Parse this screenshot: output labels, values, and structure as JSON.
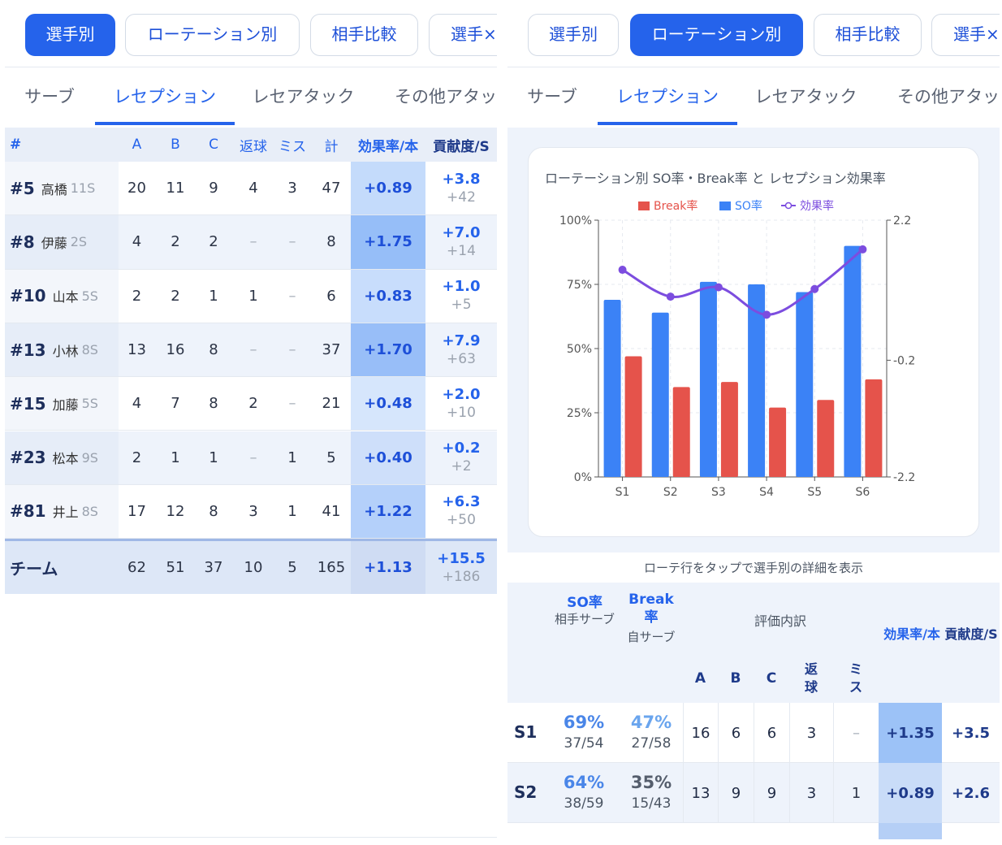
{
  "left": {
    "pills": [
      "選手別",
      "ローテーション別",
      "相手比較",
      "選手×"
    ],
    "active_pill": 0,
    "subtabs": [
      "サーブ",
      "レセプション",
      "レセアタック",
      "その他アタッ・"
    ],
    "active_subtab": 1,
    "table": {
      "headers": [
        "#",
        "A",
        "B",
        "C",
        "返球",
        "ミス",
        "計",
        "効果率/本",
        "貢献度/S"
      ],
      "rows": [
        {
          "num": "#5",
          "name": "高橋",
          "sets": "11S",
          "a": "20",
          "b": "11",
          "c": "9",
          "ret": "4",
          "miss": "3",
          "total": "47",
          "eff": "+0.89",
          "contrib": "+3.8",
          "contrib_total": "+42",
          "eff_level": 0.5
        },
        {
          "num": "#8",
          "name": "伊藤",
          "sets": "2S",
          "a": "4",
          "b": "2",
          "c": "2",
          "ret": "–",
          "miss": "–",
          "total": "8",
          "eff": "+1.75",
          "contrib": "+7.0",
          "contrib_total": "+14",
          "eff_level": 1.0
        },
        {
          "num": "#10",
          "name": "山本",
          "sets": "5S",
          "a": "2",
          "b": "2",
          "c": "1",
          "ret": "1",
          "miss": "–",
          "total": "6",
          "eff": "+0.83",
          "contrib": "+1.0",
          "contrib_total": "+5",
          "eff_level": 0.45
        },
        {
          "num": "#13",
          "name": "小林",
          "sets": "8S",
          "a": "13",
          "b": "16",
          "c": "8",
          "ret": "–",
          "miss": "–",
          "total": "37",
          "eff": "+1.70",
          "contrib": "+7.9",
          "contrib_total": "+63",
          "eff_level": 0.97
        },
        {
          "num": "#15",
          "name": "加藤",
          "sets": "5S",
          "a": "4",
          "b": "7",
          "c": "8",
          "ret": "2",
          "miss": "–",
          "total": "21",
          "eff": "+0.48",
          "contrib": "+2.0",
          "contrib_total": "+10",
          "eff_level": 0.27
        },
        {
          "num": "#23",
          "name": "松本",
          "sets": "9S",
          "a": "2",
          "b": "1",
          "c": "1",
          "ret": "–",
          "miss": "1",
          "total": "5",
          "eff": "+0.40",
          "contrib": "+0.2",
          "contrib_total": "+2",
          "eff_level": 0.2
        },
        {
          "num": "#81",
          "name": "井上",
          "sets": "8S",
          "a": "17",
          "b": "12",
          "c": "8",
          "ret": "3",
          "miss": "1",
          "total": "41",
          "eff": "+1.22",
          "contrib": "+6.3",
          "contrib_total": "+50",
          "eff_level": 0.7
        }
      ],
      "team": {
        "label": "チーム",
        "a": "62",
        "b": "51",
        "c": "37",
        "ret": "10",
        "miss": "5",
        "total": "165",
        "eff": "+1.13",
        "contrib": "+15.5",
        "contrib_total": "+186"
      }
    }
  },
  "right": {
    "pills": [
      "選手別",
      "ローテーション別",
      "相手比較",
      "選手×"
    ],
    "active_pill": 1,
    "subtabs": [
      "サーブ",
      "レセプション",
      "レセアタック",
      "その他アタッ・"
    ],
    "active_subtab": 1,
    "chart_title": "ローテーション別 SO率・Break率 と レセプション効果率",
    "hint": "ローテ行をタップで選手別の詳細を表示",
    "table": {
      "h_so": "SO率",
      "h_so_sub": "相手サーブ",
      "h_break": "Break率",
      "h_break_sub": "自サーブ",
      "h_breakdown": "評価内訳",
      "h_a": "A",
      "h_b": "B",
      "h_c": "C",
      "h_ret": "返球",
      "h_miss": "ミス",
      "h_eff": "効果率/本",
      "h_contrib": "貢献度/S",
      "rows": [
        {
          "rot": "S1",
          "so": "69%",
          "so_frac": "37/54",
          "brk": "47%",
          "brk_frac": "27/58",
          "a": "16",
          "b": "6",
          "c": "6",
          "ret": "3",
          "miss": "–",
          "eff": "+1.35",
          "contrib": "+3.5"
        },
        {
          "rot": "S2",
          "so": "64%",
          "so_frac": "38/59",
          "brk": "35%",
          "brk_frac": "15/43",
          "a": "13",
          "b": "9",
          "c": "9",
          "ret": "3",
          "miss": "1",
          "eff": "+0.89",
          "contrib": "+2.6"
        }
      ]
    }
  },
  "chart_data": {
    "type": "bar",
    "title": "ローテーション別 SO率・Break率 と レセプション効果率",
    "categories": [
      "S1",
      "S2",
      "S3",
      "S4",
      "S5",
      "S6"
    ],
    "series": [
      {
        "name": "SO率",
        "type": "bar",
        "color": "#3b82f6",
        "values": [
          69,
          64,
          76,
          75,
          72,
          90
        ]
      },
      {
        "name": "Break率",
        "type": "bar",
        "color": "#e5534b",
        "values": [
          47,
          35,
          37,
          27,
          30,
          38
        ]
      },
      {
        "name": "効果率",
        "type": "line",
        "color": "#7c4ddf",
        "axis": "right",
        "values": [
          1.35,
          0.89,
          1.05,
          0.58,
          1.02,
          1.7
        ]
      }
    ],
    "legend": [
      "Break率",
      "SO率",
      "効果率"
    ],
    "legend_position": "top",
    "y_ticks": [
      "0%",
      "25%",
      "50%",
      "75%",
      "100%"
    ],
    "y2_ticks": [
      "-2.2",
      "-0.2",
      "2.2"
    ],
    "ylim": [
      0,
      100
    ],
    "y2lim": [
      -2.2,
      2.2
    ],
    "grid": true
  }
}
